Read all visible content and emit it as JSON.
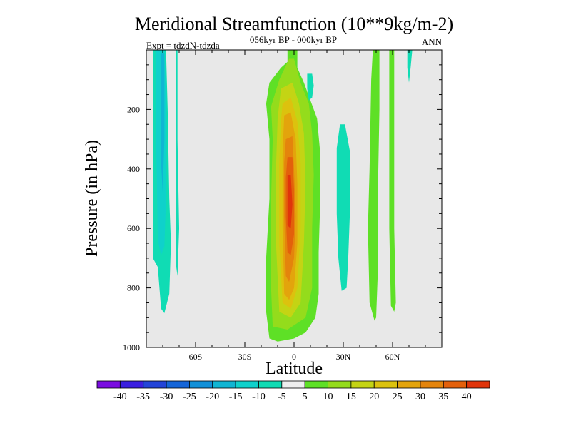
{
  "chart_data": {
    "type": "heatmap",
    "title": "Meridional Streamfunction (10**9kg/m-2)",
    "subtitle_center": "056kyr BP - 000kyr BP",
    "subtitle_left": "Expt = tdzdN-tdzda",
    "subtitle_right": "ANN",
    "xlabel": "Latitude",
    "ylabel": "Pressure (in hPa)",
    "xlim": [
      -90,
      90
    ],
    "ylim": [
      1000,
      0
    ],
    "x_ticks": [
      {
        "value": -60,
        "label": "60S"
      },
      {
        "value": -30,
        "label": "30S"
      },
      {
        "value": 0,
        "label": "0"
      },
      {
        "value": 30,
        "label": "30N"
      },
      {
        "value": 60,
        "label": "60N"
      }
    ],
    "y_ticks": [
      {
        "value": 200,
        "label": "200"
      },
      {
        "value": 400,
        "label": "400"
      },
      {
        "value": 600,
        "label": "600"
      },
      {
        "value": 800,
        "label": "800"
      },
      {
        "value": 1000,
        "label": "1000"
      }
    ],
    "background_color": "#e8e8e8",
    "colorbar": {
      "levels": [
        "-40",
        "-35",
        "-30",
        "-25",
        "-20",
        "-15",
        "-10",
        "-5",
        "5",
        "10",
        "15",
        "20",
        "25",
        "30",
        "35",
        "40"
      ],
      "colors": [
        "#7a0de0",
        "#3a1ee0",
        "#2344d8",
        "#1565d8",
        "#1190d8",
        "#10b5d3",
        "#0fd1cb",
        "#10dcb4",
        "#eeeeee",
        "#5ee026",
        "#94dc1c",
        "#c4d414",
        "#dcc20e",
        "#e3a40c",
        "#e4840c",
        "#e3600b",
        "#e0340a"
      ]
    },
    "regions": [
      {
        "value": -7,
        "points": [
          [
            -86,
            0
          ],
          [
            -78,
            0
          ],
          [
            -77,
            200
          ],
          [
            -76,
            500
          ],
          [
            -75,
            650
          ],
          [
            -76,
            820
          ],
          [
            -79,
            885
          ],
          [
            -81,
            870
          ],
          [
            -83,
            730
          ],
          [
            -86,
            700
          ]
        ]
      },
      {
        "value": -12,
        "points": [
          [
            -84,
            0
          ],
          [
            -79,
            0
          ],
          [
            -78,
            200
          ],
          [
            -78,
            500
          ],
          [
            -79,
            660
          ],
          [
            -81,
            690
          ],
          [
            -83,
            640
          ],
          [
            -84,
            300
          ]
        ]
      },
      {
        "value": -17,
        "points": [
          [
            -81,
            10
          ],
          [
            -79,
            10
          ],
          [
            -79,
            300
          ],
          [
            -80,
            480
          ],
          [
            -81,
            380
          ]
        ]
      },
      {
        "value": -7,
        "points": [
          [
            -72,
            0
          ],
          [
            -71,
            0
          ],
          [
            -71,
            300
          ],
          [
            -70,
            600
          ],
          [
            -71,
            760
          ],
          [
            -72,
            720
          ],
          [
            -72,
            400
          ]
        ]
      },
      {
        "value": 7,
        "points": [
          [
            -4,
            0
          ],
          [
            2,
            0
          ],
          [
            2,
            60
          ],
          [
            6,
            110
          ],
          [
            10,
            170
          ],
          [
            14,
            230
          ],
          [
            16,
            350
          ],
          [
            16,
            500
          ],
          [
            15,
            680
          ],
          [
            15,
            820
          ],
          [
            13,
            900
          ],
          [
            7,
            950
          ],
          [
            0,
            970
          ],
          [
            -10,
            980
          ],
          [
            -15,
            970
          ],
          [
            -17,
            880
          ],
          [
            -17,
            700
          ],
          [
            -15,
            500
          ],
          [
            -15,
            300
          ],
          [
            -17,
            180
          ],
          [
            -15,
            110
          ],
          [
            -8,
            60
          ],
          [
            -4,
            40
          ]
        ]
      },
      {
        "value": 12,
        "points": [
          [
            -3,
            30
          ],
          [
            0,
            30
          ],
          [
            4,
            110
          ],
          [
            9,
            180
          ],
          [
            11,
            280
          ],
          [
            12,
            420
          ],
          [
            11,
            600
          ],
          [
            11,
            800
          ],
          [
            7,
            900
          ],
          [
            -4,
            940
          ],
          [
            -13,
            930
          ],
          [
            -14,
            800
          ],
          [
            -14,
            500
          ],
          [
            -13,
            300
          ],
          [
            -14,
            190
          ],
          [
            -9,
            100
          ]
        ]
      },
      {
        "value": 17,
        "points": [
          [
            -8,
            130
          ],
          [
            -1,
            110
          ],
          [
            3,
            180
          ],
          [
            6,
            280
          ],
          [
            7,
            450
          ],
          [
            6,
            650
          ],
          [
            4,
            850
          ],
          [
            -2,
            900
          ],
          [
            -9,
            880
          ],
          [
            -11,
            650
          ],
          [
            -11,
            400
          ],
          [
            -10,
            230
          ]
        ]
      },
      {
        "value": 22,
        "points": [
          [
            -7,
            180
          ],
          [
            -2,
            160
          ],
          [
            2,
            240
          ],
          [
            4,
            380
          ],
          [
            4,
            600
          ],
          [
            2,
            800
          ],
          [
            -2,
            870
          ],
          [
            -7,
            850
          ],
          [
            -9,
            650
          ],
          [
            -9,
            380
          ],
          [
            -8,
            240
          ]
        ]
      },
      {
        "value": 27,
        "points": [
          [
            -6,
            220
          ],
          [
            -2,
            210
          ],
          [
            1,
            300
          ],
          [
            2,
            450
          ],
          [
            2,
            650
          ],
          [
            0,
            800
          ],
          [
            -3,
            840
          ],
          [
            -6,
            820
          ],
          [
            -7,
            600
          ],
          [
            -7,
            350
          ]
        ]
      },
      {
        "value": 32,
        "points": [
          [
            -5,
            300
          ],
          [
            -1,
            290
          ],
          [
            0,
            400
          ],
          [
            1,
            560
          ],
          [
            0,
            700
          ],
          [
            -3,
            780
          ],
          [
            -5,
            760
          ],
          [
            -6,
            560
          ],
          [
            -6,
            380
          ]
        ]
      },
      {
        "value": 37,
        "points": [
          [
            -4,
            360
          ],
          [
            -1,
            360
          ],
          [
            0,
            470
          ],
          [
            0,
            620
          ],
          [
            -2,
            690
          ],
          [
            -4,
            680
          ],
          [
            -5,
            560
          ],
          [
            -5,
            430
          ]
        ]
      },
      {
        "value": 42,
        "points": [
          [
            -4,
            420
          ],
          [
            -2,
            420
          ],
          [
            -1,
            520
          ],
          [
            -2,
            600
          ],
          [
            -4,
            590
          ],
          [
            -4,
            500
          ]
        ]
      },
      {
        "value": -7,
        "points": [
          [
            8,
            80
          ],
          [
            11,
            80
          ],
          [
            12,
            120
          ],
          [
            11,
            160
          ],
          [
            9,
            170
          ],
          [
            8,
            130
          ]
        ]
      },
      {
        "value": -7,
        "points": [
          [
            28,
            250
          ],
          [
            31,
            250
          ],
          [
            34,
            340
          ],
          [
            34,
            550
          ],
          [
            33,
            700
          ],
          [
            32,
            800
          ],
          [
            29,
            810
          ],
          [
            27,
            700
          ],
          [
            26,
            550
          ],
          [
            26,
            330
          ]
        ]
      },
      {
        "value": 7,
        "points": [
          [
            48,
            0
          ],
          [
            52,
            0
          ],
          [
            52,
            200
          ],
          [
            51,
            500
          ],
          [
            51,
            750
          ],
          [
            50,
            900
          ],
          [
            49,
            910
          ],
          [
            46,
            850
          ],
          [
            45,
            600
          ],
          [
            46,
            400
          ],
          [
            47,
            100
          ]
        ]
      },
      {
        "value": 7,
        "points": [
          [
            58,
            0
          ],
          [
            61,
            0
          ],
          [
            61,
            300
          ],
          [
            61,
            600
          ],
          [
            62,
            850
          ],
          [
            61,
            880
          ],
          [
            59,
            860
          ],
          [
            58,
            600
          ],
          [
            58,
            200
          ]
        ]
      },
      {
        "value": -7,
        "points": [
          [
            69,
            0
          ],
          [
            72,
            0
          ],
          [
            71,
            60
          ],
          [
            70,
            110
          ],
          [
            69,
            60
          ]
        ]
      }
    ]
  }
}
